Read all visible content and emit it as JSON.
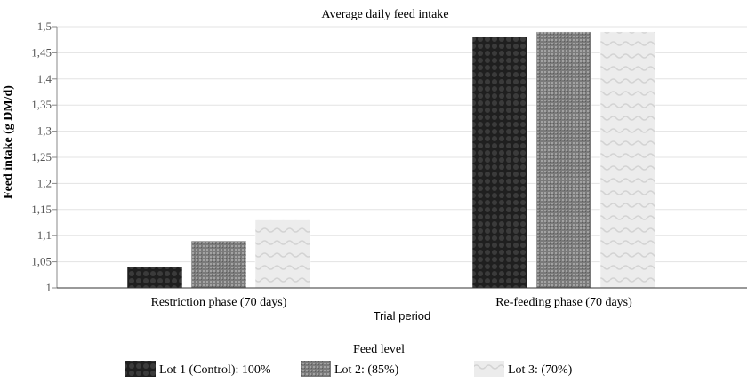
{
  "chart_data": {
    "type": "bar",
    "title": "Average daily feed intake",
    "xlabel": "Trial period",
    "ylabel": "Feed intake (g DM/d)",
    "ylim": [
      1,
      1.5
    ],
    "yticks": [
      "1",
      "1,05",
      "1,1",
      "1,15",
      "1,2",
      "1,25",
      "1,3",
      "1,35",
      "1,4",
      "1,45",
      "1,5"
    ],
    "grid": true,
    "categories": [
      "Restriction phase (70 days)",
      "Re-feeding phase (70 days)"
    ],
    "series": [
      {
        "name": "Lot 1 (Control): 100%",
        "values": [
          1.04,
          1.48
        ]
      },
      {
        "name": "Lot 2: (85%)",
        "values": [
          1.09,
          1.49
        ]
      },
      {
        "name": "Lot 3: (70%)",
        "values": [
          1.13,
          1.49
        ]
      }
    ],
    "legend": {
      "title": "Feed level",
      "position": "bottom"
    },
    "colors": [
      "#2a2a2a",
      "#8c8c8c",
      "#e6e6e6"
    ]
  }
}
